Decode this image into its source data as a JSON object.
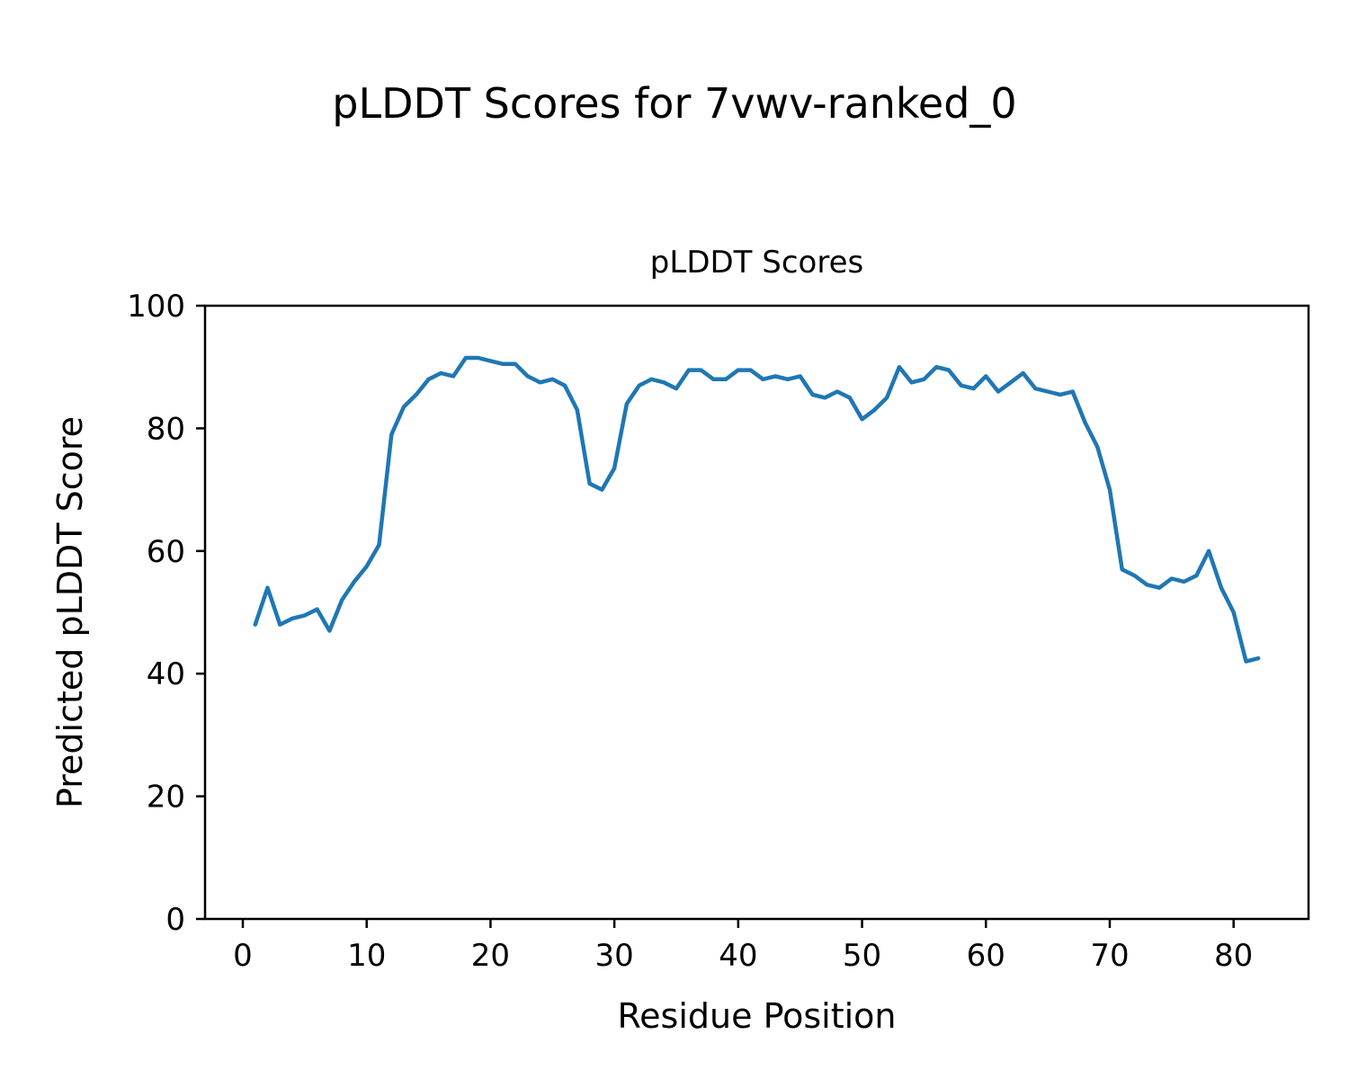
{
  "figure": {
    "title": "pLDDT Scores for 7vwv-ranked_0"
  },
  "chart_data": {
    "type": "line",
    "title": "pLDDT Scores",
    "xlabel": "Residue Position",
    "ylabel": "Predicted pLDDT Score",
    "xlim": [
      -3.05,
      86.05
    ],
    "ylim": [
      0,
      100
    ],
    "xticks": [
      0,
      10,
      20,
      30,
      40,
      50,
      60,
      70,
      80
    ],
    "yticks": [
      0,
      20,
      40,
      60,
      80,
      100
    ],
    "grid": false,
    "legend": "none",
    "line_color": "#1f77b4",
    "x": [
      1,
      2,
      3,
      4,
      5,
      6,
      7,
      8,
      9,
      10,
      11,
      12,
      13,
      14,
      15,
      16,
      17,
      18,
      19,
      20,
      21,
      22,
      23,
      24,
      25,
      26,
      27,
      28,
      29,
      30,
      31,
      32,
      33,
      34,
      35,
      36,
      37,
      38,
      39,
      40,
      41,
      42,
      43,
      44,
      45,
      46,
      47,
      48,
      49,
      50,
      51,
      52,
      53,
      54,
      55,
      56,
      57,
      58,
      59,
      60,
      61,
      62,
      63,
      64,
      65,
      66,
      67,
      68,
      69,
      70,
      71,
      72,
      73,
      74,
      75,
      76,
      77,
      78,
      79,
      80,
      81,
      82
    ],
    "y": [
      48,
      54,
      48,
      49,
      49.5,
      50.5,
      47,
      52,
      55,
      57.5,
      61,
      79,
      83.5,
      85.5,
      88,
      89,
      88.5,
      91.5,
      91.5,
      91,
      90.5,
      90.5,
      88.5,
      87.5,
      88,
      87,
      83,
      71,
      70,
      73.5,
      84,
      87,
      88,
      87.5,
      86.5,
      89.5,
      89.5,
      88,
      88,
      89.5,
      89.5,
      88,
      88.5,
      88,
      88.5,
      85.5,
      85,
      86,
      85,
      81.5,
      83,
      85,
      90,
      87.5,
      88,
      90,
      89.5,
      87,
      86.5,
      88.5,
      86,
      87.5,
      89,
      86.5,
      86,
      85.5,
      86,
      81,
      77,
      70,
      57,
      56,
      54.5,
      54,
      55.5,
      55,
      56,
      60,
      54,
      50,
      42,
      42.5
    ]
  }
}
